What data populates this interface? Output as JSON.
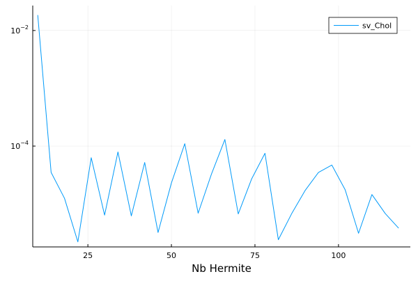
{
  "chart_data": {
    "type": "line",
    "title": "",
    "xlabel": "Nb Hermite",
    "ylabel": "",
    "yscale": "log",
    "xlim": [
      8.5,
      121.5
    ],
    "ylim": [
      1.8e-06,
      0.027
    ],
    "grid": true,
    "legend_position": "top-right",
    "x_ticks": [
      {
        "value": 25,
        "label": "25"
      },
      {
        "value": 50,
        "label": "50"
      },
      {
        "value": 75,
        "label": "75"
      },
      {
        "value": 100,
        "label": "100"
      }
    ],
    "y_ticks": [
      {
        "value": 0.01,
        "base": "10",
        "exponent": "−2"
      },
      {
        "value": 0.0001,
        "base": "10",
        "exponent": "−4"
      }
    ],
    "x": [
      10,
      14,
      18,
      22,
      26,
      30,
      34,
      38,
      42,
      46,
      50,
      54,
      58,
      62,
      66,
      70,
      74,
      78,
      82,
      86,
      90,
      94,
      98,
      102,
      106,
      110,
      114,
      118
    ],
    "series": [
      {
        "name": "sv_Chol",
        "color": "#009af9",
        "values": [
          0.0185,
          3.5e-05,
          1.25e-05,
          2.2e-06,
          6.3e-05,
          6.4e-06,
          7.9e-05,
          6.2e-06,
          5.2e-05,
          3.2e-06,
          2.3e-05,
          0.00011,
          6.9e-06,
          3.3e-05,
          0.00013,
          6.7e-06,
          2.7e-05,
          7.5e-05,
          2.4e-06,
          6.8e-06,
          1.7e-05,
          3.5e-05,
          4.7e-05,
          1.75e-05,
          3.1e-06,
          1.45e-05,
          6.8e-06,
          3.8e-06
        ]
      }
    ]
  }
}
